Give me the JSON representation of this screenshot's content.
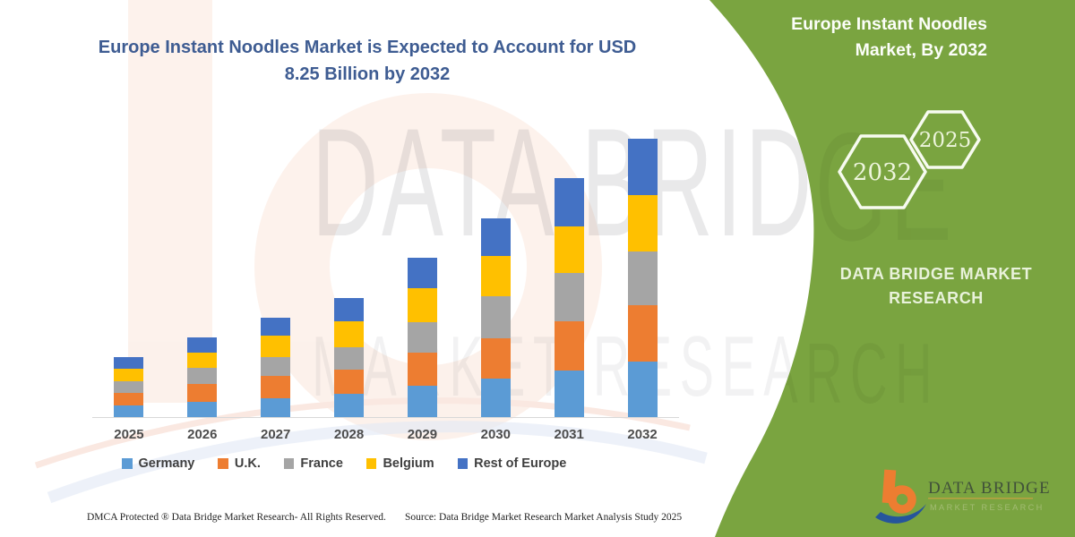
{
  "header": {
    "title_line1": "Europe Instant Noodles Market is Expected to Account for USD",
    "title_line2": "8.25 Billion by 2032",
    "title_color": "#3E5C92"
  },
  "chart_data": {
    "type": "bar",
    "stacked": true,
    "title": "Europe Instant Noodles Market is Expected to Account for USD 8.25 Billion by 2032",
    "value_unit": "USD Billion",
    "categories": [
      "2025",
      "2026",
      "2027",
      "2028",
      "2029",
      "2030",
      "2031",
      "2032"
    ],
    "series": [
      {
        "name": "Germany",
        "color": "#5B9BD5",
        "values": [
          0.35,
          0.45,
          0.56,
          0.69,
          0.93,
          1.14,
          1.38,
          1.64
        ]
      },
      {
        "name": "U.K.",
        "color": "#ED7D31",
        "values": [
          0.38,
          0.52,
          0.66,
          0.72,
          0.98,
          1.19,
          1.46,
          1.67
        ]
      },
      {
        "name": "France",
        "color": "#A5A5A5",
        "values": [
          0.32,
          0.48,
          0.56,
          0.66,
          0.9,
          1.25,
          1.43,
          1.59
        ]
      },
      {
        "name": "Belgium",
        "color": "#FFC000",
        "values": [
          0.39,
          0.46,
          0.64,
          0.77,
          1.01,
          1.19,
          1.38,
          1.67
        ]
      },
      {
        "name": "Rest of Europe",
        "color": "#4472C4",
        "values": [
          0.34,
          0.45,
          0.53,
          0.69,
          0.9,
          1.12,
          1.43,
          1.68
        ]
      }
    ],
    "totals_estimated": [
      1.78,
      2.36,
      2.95,
      3.53,
      4.72,
      5.89,
      7.08,
      8.25
    ],
    "ylim": [
      0,
      8.5
    ],
    "gridlines": false,
    "legend_position": "bottom"
  },
  "panel": {
    "bg_color": "#7AA440",
    "title_line1": "Europe Instant Noodles",
    "title_line2": "Market, By 2032",
    "hexagons": [
      {
        "label": "2032"
      },
      {
        "label": "2025"
      }
    ],
    "brand_line1": "DATA BRIDGE MARKET",
    "brand_line2": "RESEARCH",
    "logo": {
      "name_text": "DATA BRIDGE",
      "sub_text": "MARKET RESEARCH"
    }
  },
  "watermarks": {
    "big": "DATA BRIDGE",
    "small": "MARKET RESEARCH"
  },
  "footer": {
    "dmca": "DMCA Protected ® Data Bridge Market Research-  All Rights Reserved.",
    "source": "Source: Data Bridge Market Research  Market Analysis Study 2025"
  }
}
